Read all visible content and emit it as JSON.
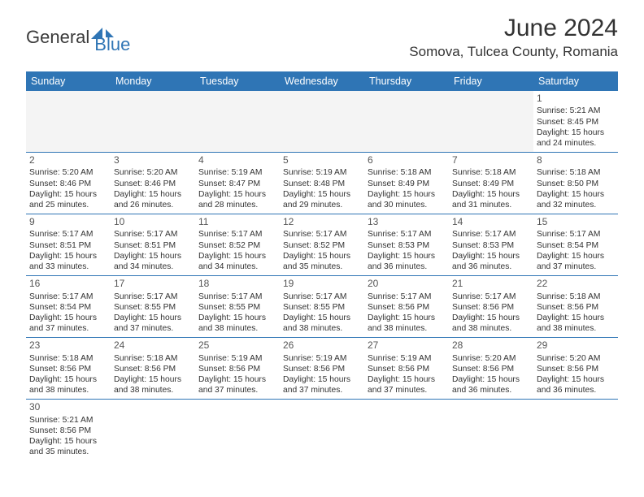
{
  "brand": {
    "part1": "General",
    "part2": "Blue"
  },
  "title": "June 2024",
  "location": "Somova, Tulcea County, Romania",
  "colors": {
    "accent": "#2f75b5",
    "text": "#333333",
    "blank_bg": "#f4f4f4"
  },
  "weekdays": [
    "Sunday",
    "Monday",
    "Tuesday",
    "Wednesday",
    "Thursday",
    "Friday",
    "Saturday"
  ],
  "weeks": [
    [
      null,
      null,
      null,
      null,
      null,
      null,
      {
        "n": "1",
        "sr": "5:21 AM",
        "ss": "8:45 PM",
        "dh": "15",
        "dm": "24"
      }
    ],
    [
      {
        "n": "2",
        "sr": "5:20 AM",
        "ss": "8:46 PM",
        "dh": "15",
        "dm": "25"
      },
      {
        "n": "3",
        "sr": "5:20 AM",
        "ss": "8:46 PM",
        "dh": "15",
        "dm": "26"
      },
      {
        "n": "4",
        "sr": "5:19 AM",
        "ss": "8:47 PM",
        "dh": "15",
        "dm": "28"
      },
      {
        "n": "5",
        "sr": "5:19 AM",
        "ss": "8:48 PM",
        "dh": "15",
        "dm": "29"
      },
      {
        "n": "6",
        "sr": "5:18 AM",
        "ss": "8:49 PM",
        "dh": "15",
        "dm": "30"
      },
      {
        "n": "7",
        "sr": "5:18 AM",
        "ss": "8:49 PM",
        "dh": "15",
        "dm": "31"
      },
      {
        "n": "8",
        "sr": "5:18 AM",
        "ss": "8:50 PM",
        "dh": "15",
        "dm": "32"
      }
    ],
    [
      {
        "n": "9",
        "sr": "5:17 AM",
        "ss": "8:51 PM",
        "dh": "15",
        "dm": "33"
      },
      {
        "n": "10",
        "sr": "5:17 AM",
        "ss": "8:51 PM",
        "dh": "15",
        "dm": "34"
      },
      {
        "n": "11",
        "sr": "5:17 AM",
        "ss": "8:52 PM",
        "dh": "15",
        "dm": "34"
      },
      {
        "n": "12",
        "sr": "5:17 AM",
        "ss": "8:52 PM",
        "dh": "15",
        "dm": "35"
      },
      {
        "n": "13",
        "sr": "5:17 AM",
        "ss": "8:53 PM",
        "dh": "15",
        "dm": "36"
      },
      {
        "n": "14",
        "sr": "5:17 AM",
        "ss": "8:53 PM",
        "dh": "15",
        "dm": "36"
      },
      {
        "n": "15",
        "sr": "5:17 AM",
        "ss": "8:54 PM",
        "dh": "15",
        "dm": "37"
      }
    ],
    [
      {
        "n": "16",
        "sr": "5:17 AM",
        "ss": "8:54 PM",
        "dh": "15",
        "dm": "37"
      },
      {
        "n": "17",
        "sr": "5:17 AM",
        "ss": "8:55 PM",
        "dh": "15",
        "dm": "37"
      },
      {
        "n": "18",
        "sr": "5:17 AM",
        "ss": "8:55 PM",
        "dh": "15",
        "dm": "38"
      },
      {
        "n": "19",
        "sr": "5:17 AM",
        "ss": "8:55 PM",
        "dh": "15",
        "dm": "38"
      },
      {
        "n": "20",
        "sr": "5:17 AM",
        "ss": "8:56 PM",
        "dh": "15",
        "dm": "38"
      },
      {
        "n": "21",
        "sr": "5:17 AM",
        "ss": "8:56 PM",
        "dh": "15",
        "dm": "38"
      },
      {
        "n": "22",
        "sr": "5:18 AM",
        "ss": "8:56 PM",
        "dh": "15",
        "dm": "38"
      }
    ],
    [
      {
        "n": "23",
        "sr": "5:18 AM",
        "ss": "8:56 PM",
        "dh": "15",
        "dm": "38"
      },
      {
        "n": "24",
        "sr": "5:18 AM",
        "ss": "8:56 PM",
        "dh": "15",
        "dm": "38"
      },
      {
        "n": "25",
        "sr": "5:19 AM",
        "ss": "8:56 PM",
        "dh": "15",
        "dm": "37"
      },
      {
        "n": "26",
        "sr": "5:19 AM",
        "ss": "8:56 PM",
        "dh": "15",
        "dm": "37"
      },
      {
        "n": "27",
        "sr": "5:19 AM",
        "ss": "8:56 PM",
        "dh": "15",
        "dm": "37"
      },
      {
        "n": "28",
        "sr": "5:20 AM",
        "ss": "8:56 PM",
        "dh": "15",
        "dm": "36"
      },
      {
        "n": "29",
        "sr": "5:20 AM",
        "ss": "8:56 PM",
        "dh": "15",
        "dm": "36"
      }
    ],
    [
      {
        "n": "30",
        "sr": "5:21 AM",
        "ss": "8:56 PM",
        "dh": "15",
        "dm": "35"
      },
      null,
      null,
      null,
      null,
      null,
      null
    ]
  ],
  "labels": {
    "sunrise": "Sunrise:",
    "sunset": "Sunset:",
    "daylight_pre": "Daylight:",
    "hours_word": "hours",
    "and_word": "and",
    "minutes_word": "minutes."
  }
}
